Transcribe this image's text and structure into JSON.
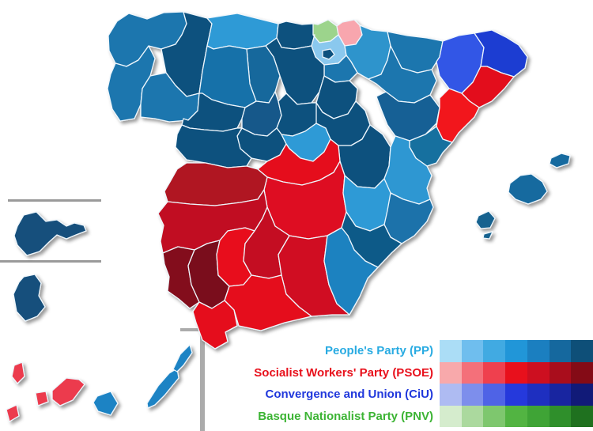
{
  "parties": {
    "PP": "People's Party",
    "PSOE": "Socialist Workers' Party",
    "CiU": "Convergence and Union",
    "PNV": "Basque Nationalist Party"
  },
  "legend": {
    "entries": [
      {
        "id": "pp",
        "label": "People's Party (PP)",
        "color": "#29ABE2",
        "shades": [
          "#ABDDF6",
          "#6FBEEE",
          "#41AAE2",
          "#2196D8",
          "#1B7FC0",
          "#15689E",
          "#0E4F78"
        ]
      },
      {
        "id": "psoe",
        "label": "Socialist Workers' Party (PSOE)",
        "color": "#E8111C",
        "shades": [
          "#F8A9AB",
          "#F4707A",
          "#EF404E",
          "#E8101C",
          "#CD0F20",
          "#A90D1C",
          "#840B16"
        ]
      },
      {
        "id": "ciu",
        "label": "Convergence and Union (CiU)",
        "color": "#2038DC",
        "shades": [
          "#AEBBF2",
          "#7D8EEC",
          "#4F63E6",
          "#2539DC",
          "#1E2FC0",
          "#1825A0",
          "#111A78"
        ]
      },
      {
        "id": "pnv",
        "label": "Basque Nationalist Party (PNV)",
        "color": "#3CB434",
        "shades": [
          "#D5ECCD",
          "#ABD99E",
          "#7EC76E",
          "#52B442",
          "#3FA436",
          "#2F8F2B",
          "#1F711F"
        ]
      }
    ]
  },
  "map": {
    "provinces": {
      "coruna": {
        "name": "A Coruña",
        "party": "PP",
        "color": "#1B76AE"
      },
      "lugo": {
        "name": "Lugo",
        "party": "PP",
        "color": "#0F517E"
      },
      "pontevedra": {
        "name": "Pontevedra",
        "party": "PP",
        "color": "#1B76AE"
      },
      "ourense": {
        "name": "Ourense",
        "party": "PP",
        "color": "#1B76AE"
      },
      "asturias": {
        "name": "Asturias",
        "party": "PP",
        "color": "#2D9AD6"
      },
      "cantabria": {
        "name": "Cantabria",
        "party": "PP",
        "color": "#0F517E"
      },
      "vizcaya": {
        "name": "Vizcaya",
        "party": "PNV",
        "color": "#9CD48C"
      },
      "guipuzcoa": {
        "name": "Guipúzcoa",
        "party": "PSOE",
        "color": "#F8A6AE"
      },
      "alava": {
        "name": "Álava",
        "party": "PP",
        "color": "#8AC8EE"
      },
      "trevino": {
        "name": "Treviño enclave",
        "party": "PP",
        "color": "#0F517E"
      },
      "navarra": {
        "name": "Navarra",
        "party": "PP",
        "color": "#2D94CC"
      },
      "rioja": {
        "name": "La Rioja",
        "party": "PP",
        "color": "#1B76AE"
      },
      "burgos": {
        "name": "Burgos",
        "party": "PP",
        "color": "#0F517E"
      },
      "palencia": {
        "name": "Palencia",
        "party": "PP",
        "color": "#15679C"
      },
      "leon": {
        "name": "León",
        "party": "PP",
        "color": "#1971A9"
      },
      "zamora": {
        "name": "Zamora",
        "party": "PP",
        "color": "#0F517E"
      },
      "valladolid": {
        "name": "Valladolid",
        "party": "PP",
        "color": "#14598A"
      },
      "soria": {
        "name": "Soria",
        "party": "PP",
        "color": "#0F517E"
      },
      "segovia": {
        "name": "Segovia",
        "party": "PP",
        "color": "#0F517E"
      },
      "avila": {
        "name": "Ávila",
        "party": "PP",
        "color": "#0F517E"
      },
      "salamanca": {
        "name": "Salamanca",
        "party": "PP",
        "color": "#0F517E"
      },
      "madrid": {
        "name": "Madrid",
        "party": "PP",
        "color": "#2D9AD6"
      },
      "guadalajara": {
        "name": "Guadalajara",
        "party": "PP",
        "color": "#0F517E"
      },
      "cuenca": {
        "name": "Cuenca",
        "party": "PP",
        "color": "#0F517E"
      },
      "toledo": {
        "name": "Toledo",
        "party": "PSOE",
        "color": "#E5101C"
      },
      "ciudadreal": {
        "name": "Ciudad Real",
        "party": "PSOE",
        "color": "#DE1020"
      },
      "albacete": {
        "name": "Albacete",
        "party": "PP",
        "color": "#2D9AD6"
      },
      "huesca": {
        "name": "Huesca",
        "party": "PP",
        "color": "#1B76AE"
      },
      "zaragoza": {
        "name": "Zaragoza",
        "party": "PP",
        "color": "#1B76AE"
      },
      "teruel": {
        "name": "Teruel",
        "party": "PP",
        "color": "#136195"
      },
      "lleida": {
        "name": "Lleida",
        "party": "CiU",
        "color": "#3056E6"
      },
      "girona": {
        "name": "Girona",
        "party": "CiU",
        "color": "#1C3ED2"
      },
      "barcelona": {
        "name": "Barcelona",
        "party": "PSOE",
        "color": "#E30E1B"
      },
      "tarragona": {
        "name": "Tarragona",
        "party": "PSOE",
        "color": "#F2121F"
      },
      "castellon": {
        "name": "Castellón",
        "party": "PP",
        "color": "#18709F"
      },
      "valencia": {
        "name": "Valencia",
        "party": "PP",
        "color": "#2D97D2"
      },
      "alicante": {
        "name": "Alicante",
        "party": "PP",
        "color": "#1B72AA"
      },
      "murcia": {
        "name": "Murcia",
        "party": "PP",
        "color": "#115A88"
      },
      "caceres": {
        "name": "Cáceres",
        "party": "PSOE",
        "color": "#B01320"
      },
      "badajoz": {
        "name": "Badajoz",
        "party": "PSOE",
        "color": "#C11120"
      },
      "huelva": {
        "name": "Huelva",
        "party": "PSOE",
        "color": "#83101D"
      },
      "sevilla": {
        "name": "Sevilla",
        "party": "PSOE",
        "color": "#7A0E1A"
      },
      "cordoba": {
        "name": "Córdoba",
        "party": "PSOE",
        "color": "#E8111E"
      },
      "jaen": {
        "name": "Jaén",
        "party": "PSOE",
        "color": "#C41120"
      },
      "granada": {
        "name": "Granada",
        "party": "PSOE",
        "color": "#D01020"
      },
      "almeria": {
        "name": "Almería",
        "party": "PP",
        "color": "#1E82C0"
      },
      "malaga": {
        "name": "Málaga",
        "party": "PSOE",
        "color": "#E5101E"
      },
      "cadiz": {
        "name": "Cádiz",
        "party": "PSOE",
        "color": "#E5101E"
      },
      "mallorca": {
        "name": "Mallorca",
        "party": "PP",
        "color": "#176A9F"
      },
      "menorca": {
        "name": "Menorca",
        "party": "PP",
        "color": "#176A9F"
      },
      "ibiza": {
        "name": "Ibiza",
        "party": "PP",
        "color": "#15628F"
      },
      "formentera": {
        "name": "Formentera",
        "party": "PP",
        "color": "#15628F"
      },
      "lapalma": {
        "name": "La Palma",
        "party": "PSOE",
        "color": "#EC3B4E"
      },
      "hierro": {
        "name": "El Hierro",
        "party": "PSOE",
        "color": "#EC3B4E"
      },
      "gomera": {
        "name": "La Gomera",
        "party": "PSOE",
        "color": "#EC3B4E"
      },
      "tenerife": {
        "name": "Tenerife",
        "party": "PSOE",
        "color": "#EC3B4E"
      },
      "grancanaria": {
        "name": "Gran Canaria",
        "party": "PP",
        "color": "#1F83C4"
      },
      "fuerteventura": {
        "name": "Fuerteventura",
        "party": "PP",
        "color": "#1F83C4"
      },
      "lanzarote": {
        "name": "Lanzarote",
        "party": "PP",
        "color": "#1F83C4"
      },
      "ceuta": {
        "name": "Ceuta",
        "party": "PP",
        "color": "#124F7B"
      },
      "melilla": {
        "name": "Melilla",
        "party": "PP",
        "color": "#124F7B"
      }
    }
  }
}
